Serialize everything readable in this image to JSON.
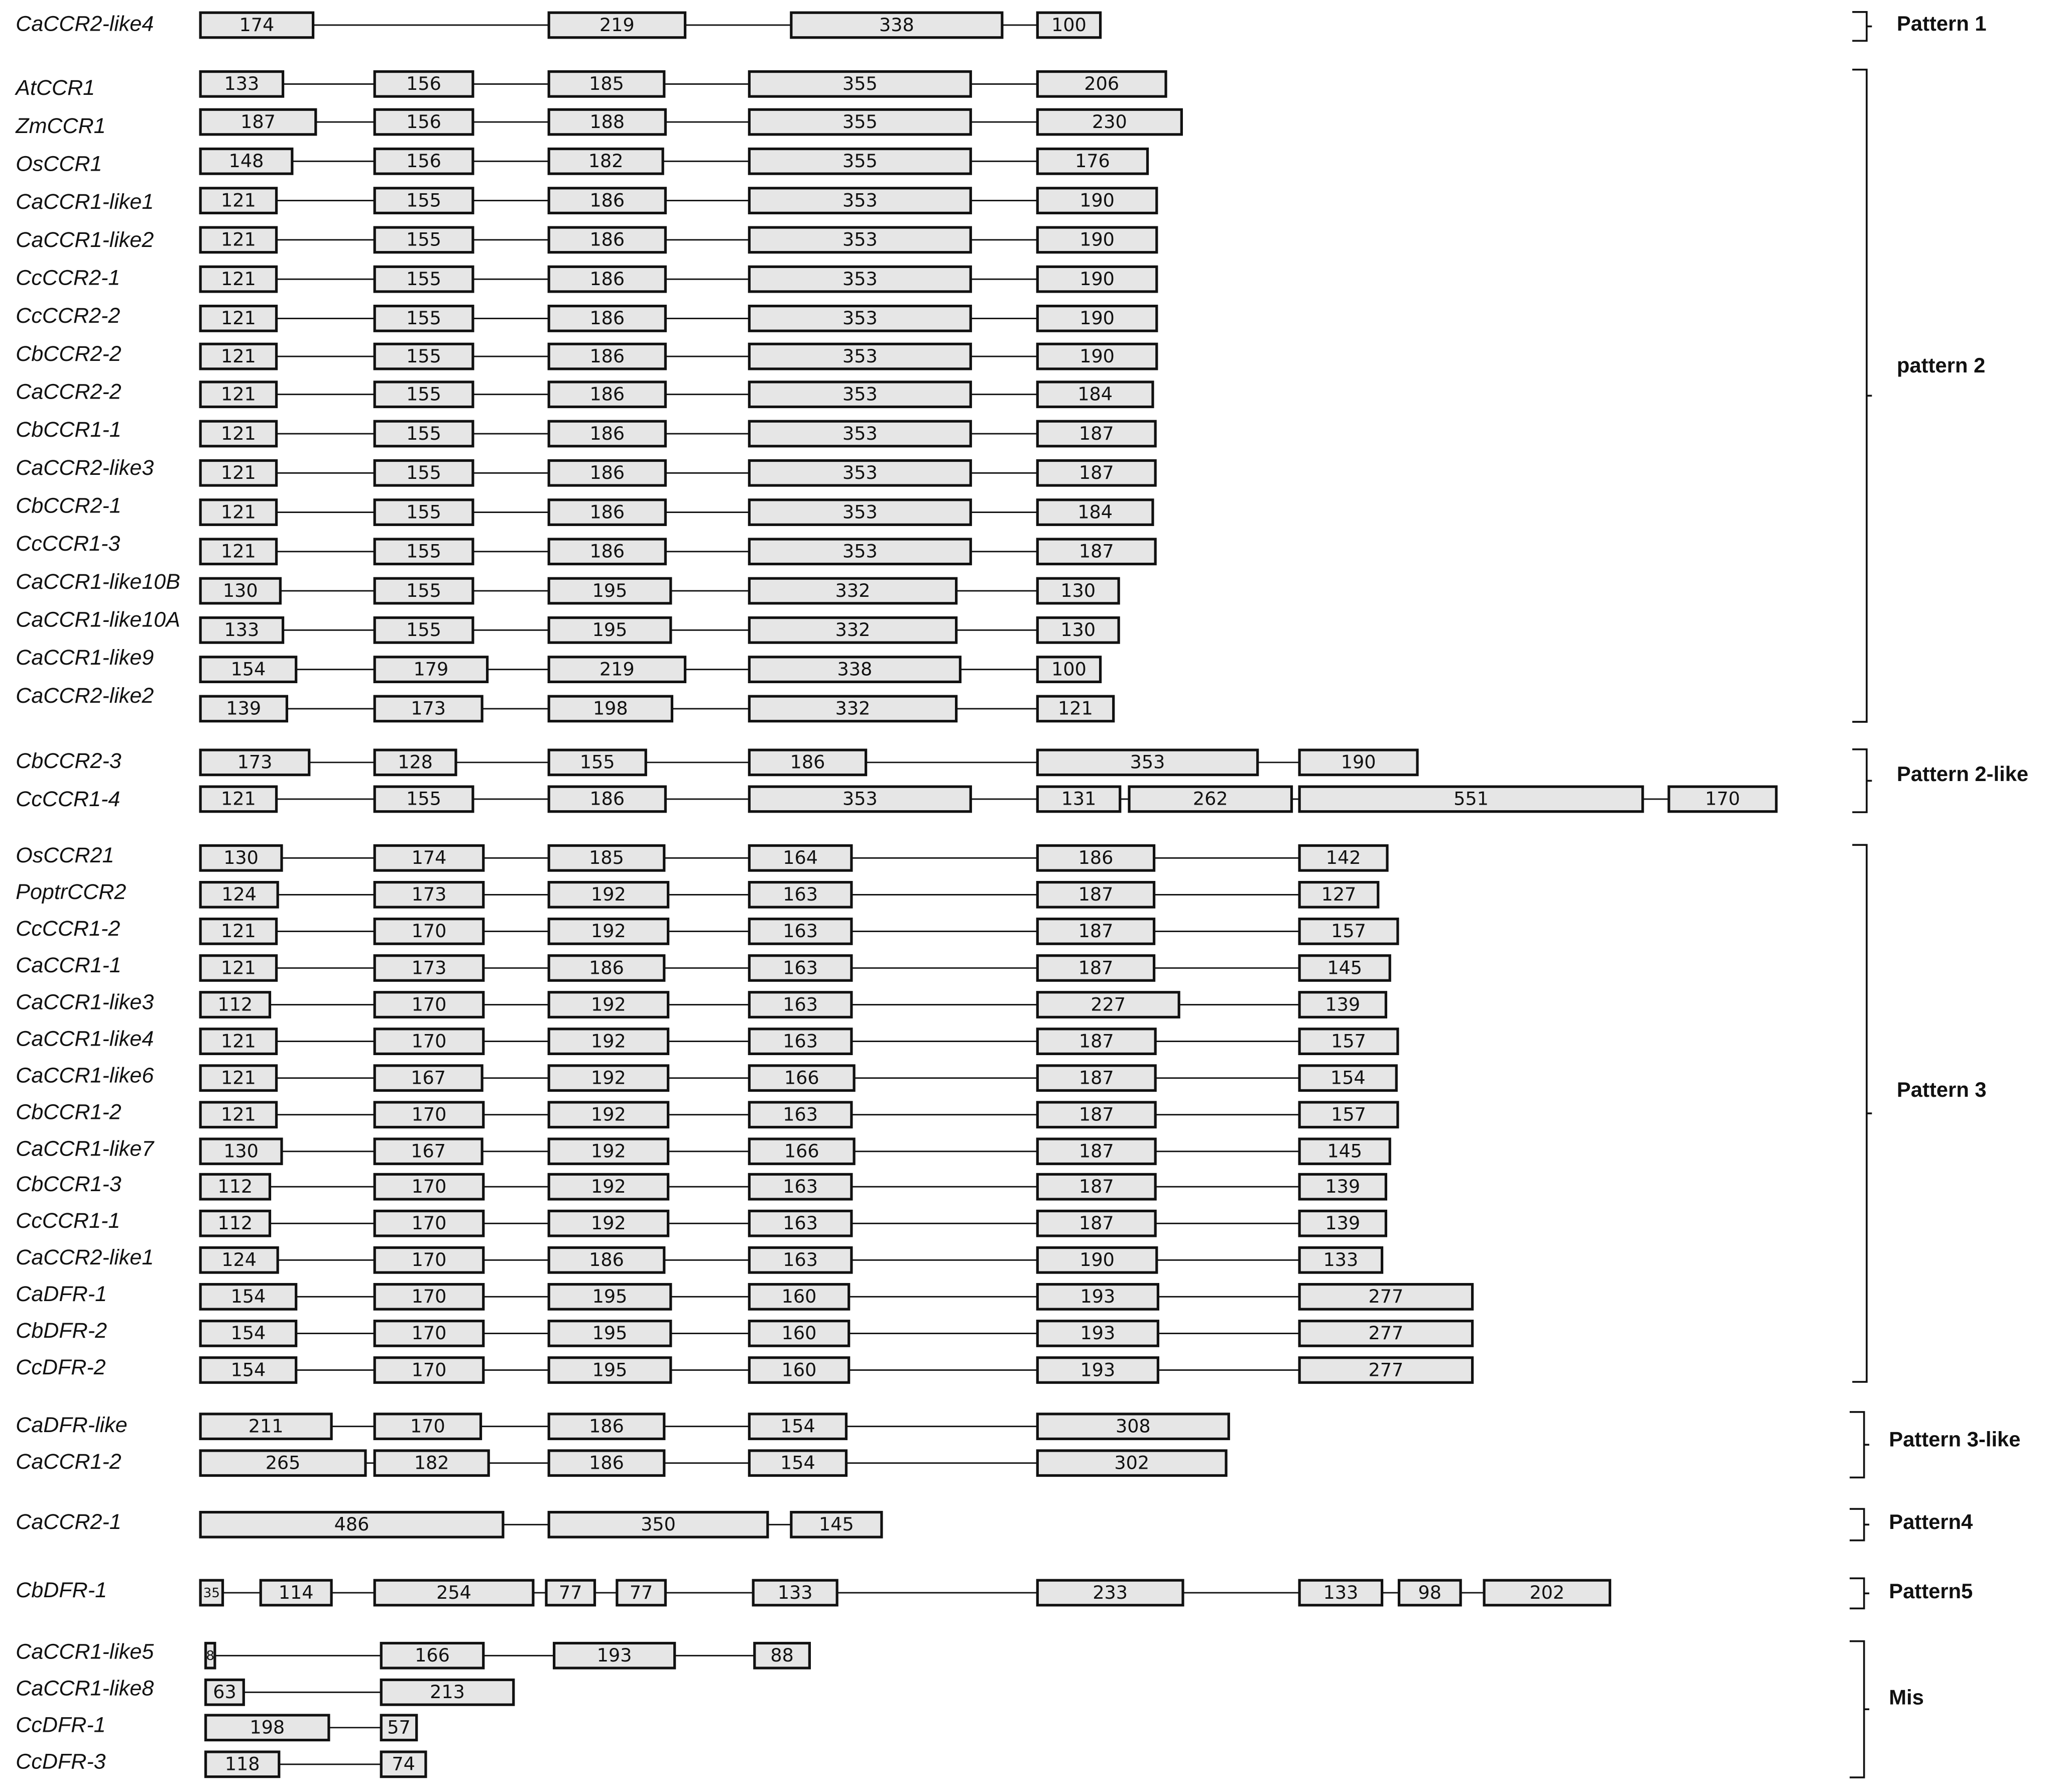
{
  "colors": {
    "exon_fill": "#e6e6e6",
    "stroke": "#111111",
    "background": "#ffffff"
  },
  "genes": [
    {
      "name": "CaCCR2-like4",
      "exons": [
        174,
        219,
        338,
        100
      ]
    },
    {
      "name": "AtCCR1",
      "exons": [
        133,
        156,
        185,
        355,
        206
      ]
    },
    {
      "name": "ZmCCR1",
      "exons": [
        187,
        156,
        188,
        355,
        230
      ]
    },
    {
      "name": "OsCCR1",
      "exons": [
        148,
        156,
        182,
        355,
        176
      ]
    },
    {
      "name": "CaCCR1-like1",
      "exons": [
        121,
        155,
        186,
        353,
        190
      ]
    },
    {
      "name": "CaCCR1-like2",
      "exons": [
        121,
        155,
        186,
        353,
        190
      ]
    },
    {
      "name": "CcCCR2-1",
      "exons": [
        121,
        155,
        186,
        353,
        190
      ]
    },
    {
      "name": "CcCCR2-2",
      "exons": [
        121,
        155,
        186,
        353,
        190
      ]
    },
    {
      "name": "CbCCR2-2",
      "exons": [
        121,
        155,
        186,
        353,
        190
      ]
    },
    {
      "name": "CaCCR2-2",
      "exons": [
        121,
        155,
        186,
        353,
        184
      ]
    },
    {
      "name": "CbCCR1-1",
      "exons": [
        121,
        155,
        186,
        353,
        187
      ]
    },
    {
      "name": "CaCCR2-like3",
      "exons": [
        121,
        155,
        186,
        353,
        187
      ]
    },
    {
      "name": "CbCCR2-1",
      "exons": [
        121,
        155,
        186,
        353,
        184
      ]
    },
    {
      "name": "CcCCR1-3",
      "exons": [
        121,
        155,
        186,
        353,
        187
      ]
    },
    {
      "name": "CaCCR1-like10B",
      "exons": [
        130,
        155,
        195,
        332,
        130
      ]
    },
    {
      "name": "CaCCR1-like10A",
      "exons": [
        133,
        155,
        195,
        332,
        130
      ]
    },
    {
      "name": "CaCCR1-like9",
      "exons": [
        154,
        179,
        219,
        338,
        100
      ]
    },
    {
      "name": "CaCCR2-like2",
      "exons": [
        139,
        173,
        198,
        332,
        121
      ]
    },
    {
      "name": "CbCCR2-3",
      "exons": [
        173,
        128,
        155,
        186,
        353,
        190
      ]
    },
    {
      "name": "CcCCR1-4",
      "exons": [
        121,
        155,
        186,
        353,
        131,
        262,
        551,
        170
      ]
    },
    {
      "name": "OsCCR21",
      "exons": [
        130,
        174,
        185,
        164,
        186,
        142
      ]
    },
    {
      "name": "PoptrCCR2",
      "exons": [
        124,
        173,
        192,
        163,
        187,
        127
      ]
    },
    {
      "name": "CcCCR1-2",
      "exons": [
        121,
        170,
        192,
        163,
        187,
        157
      ]
    },
    {
      "name": "CaCCR1-1",
      "exons": [
        121,
        173,
        186,
        163,
        187,
        145
      ]
    },
    {
      "name": "CaCCR1-like3",
      "exons": [
        112,
        170,
        192,
        163,
        227,
        139
      ]
    },
    {
      "name": "CaCCR1-like4",
      "exons": [
        121,
        170,
        192,
        163,
        187,
        157
      ]
    },
    {
      "name": "CaCCR1-like6",
      "exons": [
        121,
        167,
        192,
        166,
        187,
        154
      ]
    },
    {
      "name": "CbCCR1-2",
      "exons": [
        121,
        170,
        192,
        163,
        187,
        157
      ]
    },
    {
      "name": "CaCCR1-like7",
      "exons": [
        130,
        167,
        192,
        166,
        187,
        145
      ]
    },
    {
      "name": "CbCCR1-3",
      "exons": [
        112,
        170,
        192,
        163,
        187,
        139
      ]
    },
    {
      "name": "CcCCR1-1",
      "exons": [
        112,
        170,
        192,
        163,
        187,
        139
      ]
    },
    {
      "name": "CaCCR2-like1",
      "exons": [
        124,
        170,
        186,
        163,
        190,
        133
      ]
    },
    {
      "name": "CaDFR-1",
      "exons": [
        154,
        170,
        195,
        160,
        193,
        277
      ]
    },
    {
      "name": "CbDFR-2",
      "exons": [
        154,
        170,
        195,
        160,
        193,
        277
      ]
    },
    {
      "name": "CcDFR-2",
      "exons": [
        154,
        170,
        195,
        160,
        193,
        277
      ]
    },
    {
      "name": "CaDFR-like",
      "exons": [
        211,
        170,
        186,
        154,
        308
      ]
    },
    {
      "name": "CaCCR1-2",
      "exons": [
        265,
        182,
        186,
        154,
        302
      ]
    },
    {
      "name": "CaCCR2-1",
      "exons": [
        486,
        350,
        145
      ]
    },
    {
      "name": "CbDFR-1",
      "exons": [
        35,
        114,
        254,
        77,
        77,
        133,
        233,
        133,
        98,
        202
      ]
    },
    {
      "name": "CaCCR1-like5",
      "exons": [
        8,
        166,
        193,
        88
      ]
    },
    {
      "name": "CaCCR1-like8",
      "exons": [
        63,
        213
      ]
    },
    {
      "name": "CcDFR-1",
      "exons": [
        198,
        57
      ]
    },
    {
      "name": "CcDFR-3",
      "exons": [
        118,
        74
      ]
    }
  ],
  "patterns": [
    {
      "label": "Pattern 1"
    },
    {
      "label": "pattern 2"
    },
    {
      "label": "Pattern 2-like"
    },
    {
      "label": "Pattern 3"
    },
    {
      "label": "Pattern 3-like"
    },
    {
      "label": "Pattern4"
    },
    {
      "label": "Pattern5"
    },
    {
      "label": "Mis"
    }
  ]
}
